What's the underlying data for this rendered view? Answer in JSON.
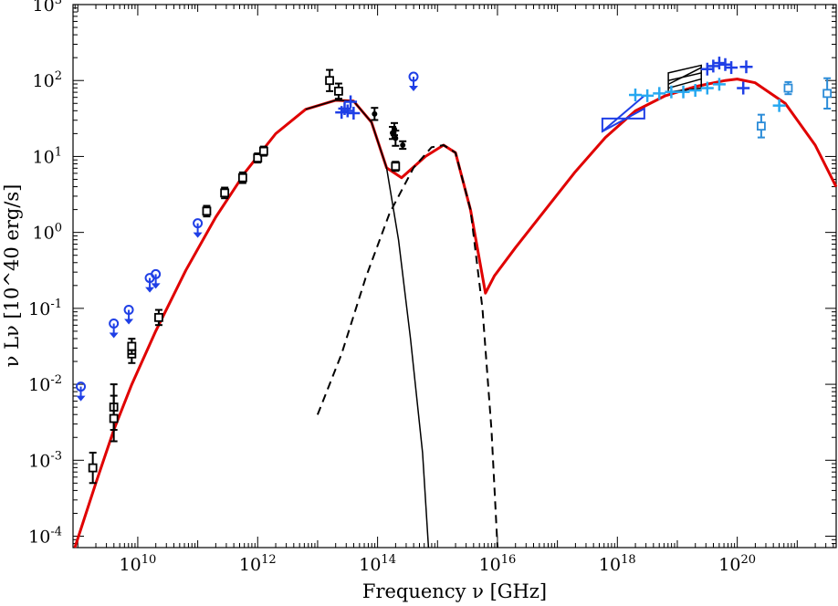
{
  "chart_data": {
    "type": "scatter",
    "title": "",
    "xlabel": "Frequency ν [GHz]",
    "ylabel": "ν Lν [10^40 erg/s]",
    "xscale": "log",
    "yscale": "log",
    "xlim_log10": [
      8.92,
      21.65
    ],
    "ylim_log10": [
      -4.15,
      3.0
    ],
    "x_ticks": [
      {
        "base": "10",
        "exp": "10",
        "value": 10
      },
      {
        "base": "10",
        "exp": "12",
        "value": 12
      },
      {
        "base": "10",
        "exp": "14",
        "value": 14
      },
      {
        "base": "10",
        "exp": "16",
        "value": 16
      },
      {
        "base": "10",
        "exp": "18",
        "value": 18
      },
      {
        "base": "10",
        "exp": "20",
        "value": 20
      }
    ],
    "y_ticks": [
      {
        "base": "10",
        "exp": "3",
        "value": 3
      },
      {
        "base": "10",
        "exp": "2",
        "value": 2
      },
      {
        "base": "10",
        "exp": "1",
        "value": 1
      },
      {
        "base": "10",
        "exp": "0",
        "value": 0
      },
      {
        "base": "10",
        "exp": "-1",
        "value": -1
      },
      {
        "base": "10",
        "exp": "-2",
        "value": -2
      },
      {
        "base": "10",
        "exp": "-3",
        "value": -3
      },
      {
        "base": "10",
        "exp": "-4",
        "value": -4
      }
    ],
    "colors": {
      "total_model": "#e00000",
      "synchrotron": "#000000",
      "compton": "#000000",
      "black_points": "#000000",
      "blue_points": "#1f3fe6",
      "cyan_points": "#27a8f0",
      "mid_blue_points": "#2b8cd8"
    },
    "series": [
      {
        "name": "total model",
        "style": "solid-thick",
        "color_key": "total_model",
        "points": [
          [
            8.95,
            -4.15
          ],
          [
            9.3,
            -3.3
          ],
          [
            9.6,
            -2.6
          ],
          [
            9.9,
            -2.0
          ],
          [
            10.3,
            -1.3
          ],
          [
            10.8,
            -0.5
          ],
          [
            11.3,
            0.2
          ],
          [
            11.8,
            0.8
          ],
          [
            12.3,
            1.3
          ],
          [
            12.8,
            1.62
          ],
          [
            13.3,
            1.74
          ],
          [
            13.6,
            1.73
          ],
          [
            13.9,
            1.45
          ],
          [
            14.15,
            0.85
          ],
          [
            14.4,
            0.72
          ],
          [
            14.8,
            1.0
          ],
          [
            15.1,
            1.15
          ],
          [
            15.3,
            1.05
          ],
          [
            15.55,
            0.3
          ],
          [
            15.8,
            -0.8
          ],
          [
            15.95,
            -0.57
          ],
          [
            16.3,
            -0.2
          ],
          [
            16.8,
            0.3
          ],
          [
            17.3,
            0.8
          ],
          [
            17.8,
            1.25
          ],
          [
            18.3,
            1.6
          ],
          [
            18.8,
            1.8
          ],
          [
            19.3,
            1.92
          ],
          [
            19.8,
            2.0
          ],
          [
            20.0,
            2.02
          ],
          [
            20.3,
            1.97
          ],
          [
            20.8,
            1.7
          ],
          [
            21.3,
            1.15
          ],
          [
            21.65,
            0.6
          ]
        ]
      },
      {
        "name": "synchrotron",
        "style": "solid-thin",
        "color_key": "synchrotron",
        "points": [
          [
            12.8,
            1.62
          ],
          [
            13.3,
            1.74
          ],
          [
            13.6,
            1.73
          ],
          [
            13.9,
            1.45
          ],
          [
            14.15,
            0.85
          ],
          [
            14.35,
            -0.1
          ],
          [
            14.55,
            -1.4
          ],
          [
            14.75,
            -2.9
          ],
          [
            14.85,
            -4.15
          ]
        ]
      },
      {
        "name": "compton",
        "style": "dashed",
        "color_key": "compton",
        "points": [
          [
            13.0,
            -2.4
          ],
          [
            13.4,
            -1.6
          ],
          [
            13.8,
            -0.6
          ],
          [
            14.2,
            0.25
          ],
          [
            14.6,
            0.85
          ],
          [
            14.9,
            1.12
          ],
          [
            15.1,
            1.15
          ],
          [
            15.3,
            1.05
          ],
          [
            15.55,
            0.3
          ],
          [
            15.75,
            -1.0
          ],
          [
            15.9,
            -2.6
          ],
          [
            16.0,
            -4.15
          ]
        ]
      }
    ],
    "black_squares": [
      [
        9.25,
        -3.1,
        0.2
      ],
      [
        9.6,
        -2.3,
        0.3
      ],
      [
        9.6,
        -2.45,
        0.3
      ],
      [
        9.9,
        -1.6,
        0.12
      ],
      [
        9.9,
        -1.5,
        0.1
      ],
      [
        10.35,
        -1.12,
        0.1
      ],
      [
        11.15,
        0.28,
        0.07
      ],
      [
        11.45,
        0.52,
        0.07
      ],
      [
        11.75,
        0.72,
        0.07
      ],
      [
        12.0,
        0.98,
        0.06
      ],
      [
        12.1,
        1.07,
        0.06
      ],
      [
        13.2,
        2.0,
        0.14
      ],
      [
        13.35,
        1.86,
        0.1
      ],
      [
        14.3,
        0.87,
        0.06
      ]
    ],
    "black_dots": [
      [
        13.95,
        1.56,
        0.08
      ],
      [
        14.25,
        1.31,
        0.08
      ],
      [
        14.28,
        1.36,
        0.08
      ],
      [
        14.3,
        1.24,
        0.1
      ],
      [
        14.42,
        1.15,
        0.05
      ]
    ],
    "blue_upper_limits": [
      [
        9.05,
        -2.03
      ],
      [
        9.6,
        -1.2
      ],
      [
        9.85,
        -1.02
      ],
      [
        10.2,
        -0.6
      ],
      [
        10.3,
        -0.55
      ],
      [
        11.0,
        0.12
      ],
      [
        14.6,
        2.05
      ]
    ],
    "blue_points": [
      [
        13.4,
        1.58
      ],
      [
        13.45,
        1.63
      ],
      [
        13.5,
        1.6
      ],
      [
        13.55,
        1.72
      ],
      [
        13.6,
        1.57
      ],
      [
        20.1,
        1.9
      ],
      [
        20.15,
        2.18
      ],
      [
        19.5,
        2.15
      ],
      [
        19.6,
        2.19
      ],
      [
        19.7,
        2.23
      ],
      [
        19.8,
        2.21
      ],
      [
        19.9,
        2.17
      ]
    ],
    "cyan_points": [
      [
        18.3,
        1.81
      ],
      [
        18.5,
        1.8
      ],
      [
        18.7,
        1.83
      ],
      [
        18.9,
        1.85
      ],
      [
        19.1,
        1.85
      ],
      [
        19.3,
        1.87
      ],
      [
        19.5,
        1.9
      ],
      [
        19.7,
        1.95
      ],
      [
        20.7,
        1.67
      ]
    ],
    "mid_blue_points": [
      [
        20.4,
        1.4,
        0.15
      ],
      [
        20.85,
        1.9,
        0.08
      ],
      [
        21.5,
        1.83,
        0.2
      ]
    ]
  }
}
